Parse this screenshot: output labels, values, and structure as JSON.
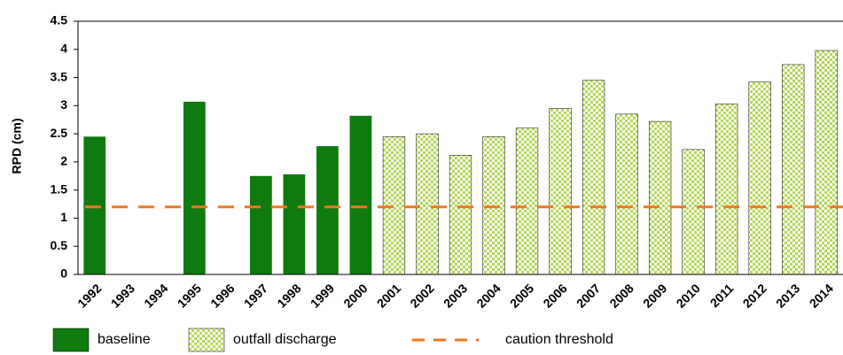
{
  "chart_data": {
    "type": "bar",
    "y_label": "RPD (cm)",
    "categories": [
      "1992",
      "1993",
      "1994",
      "1995",
      "1996",
      "1997",
      "1998",
      "1999",
      "2000",
      "2001",
      "2002",
      "2003",
      "2004",
      "2005",
      "2006",
      "2007",
      "2008",
      "2009",
      "2010",
      "2011",
      "2012",
      "2013",
      "2014"
    ],
    "series": [
      {
        "name": "baseline",
        "color": "#0f7a0f",
        "pattern": "solid",
        "values": [
          2.45,
          null,
          null,
          3.07,
          null,
          1.75,
          1.78,
          2.28,
          2.82,
          null,
          null,
          null,
          null,
          null,
          null,
          null,
          null,
          null,
          null,
          null,
          null,
          null,
          null
        ]
      },
      {
        "name": "outfall discharge",
        "color": "#b5d75a",
        "pattern": "checker",
        "values": [
          null,
          null,
          null,
          null,
          null,
          null,
          null,
          null,
          null,
          2.45,
          2.5,
          2.12,
          2.45,
          2.6,
          2.95,
          3.45,
          2.85,
          2.72,
          2.22,
          3.03,
          3.42,
          3.73,
          3.98
        ]
      }
    ],
    "threshold": {
      "name": "caution threshold",
      "value": 1.2,
      "color": "#f07820"
    },
    "ylim": [
      0,
      4.5
    ],
    "yticks": [
      0,
      0.5,
      1,
      1.5,
      2,
      2.5,
      3,
      3.5,
      4,
      4.5
    ],
    "grid": false
  }
}
